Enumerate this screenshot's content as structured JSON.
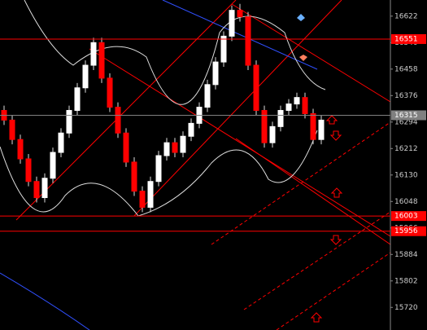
{
  "chart_data": {
    "type": "candlestick",
    "ylim": [
      15650,
      16672
    ],
    "yticks": [
      15720,
      15802,
      15884,
      15966,
      16048,
      16130,
      16212,
      16294,
      16376,
      16458,
      16540,
      16622
    ],
    "up_color": "#ffffff",
    "down_color": "#ff0000",
    "open": [
      16330,
      16300,
      16240,
      16180,
      16110,
      16060,
      16120,
      16200,
      16260,
      16330,
      16400,
      16470,
      16540,
      16430,
      16340,
      16260,
      16170,
      16080,
      16030,
      16110,
      16190,
      16230,
      16200,
      16250,
      16290,
      16340,
      16410,
      16480,
      16560,
      16640,
      16620,
      16470,
      16330,
      16230,
      16280,
      16330,
      16350,
      16370,
      16320,
      16240
    ],
    "high": [
      16345,
      16315,
      16255,
      16195,
      16125,
      16135,
      16215,
      16275,
      16345,
      16415,
      16485,
      16555,
      16555,
      16445,
      16355,
      16275,
      16185,
      16095,
      16125,
      16205,
      16245,
      16245,
      16265,
      16305,
      16355,
      16425,
      16495,
      16575,
      16655,
      16660,
      16635,
      16485,
      16345,
      16295,
      16345,
      16365,
      16385,
      16385,
      16335,
      16315
    ],
    "low": [
      16285,
      16225,
      16165,
      16095,
      16045,
      16045,
      16105,
      16185,
      16245,
      16315,
      16385,
      16455,
      16415,
      16325,
      16245,
      16155,
      16065,
      16015,
      16015,
      16095,
      16175,
      16185,
      16185,
      16235,
      16275,
      16325,
      16395,
      16465,
      16545,
      16605,
      16455,
      16315,
      16215,
      16215,
      16265,
      16315,
      16335,
      16305,
      16225,
      16225
    ],
    "close": [
      16300,
      16240,
      16180,
      16110,
      16060,
      16120,
      16200,
      16260,
      16330,
      16400,
      16470,
      16540,
      16430,
      16340,
      16260,
      16170,
      16080,
      16030,
      16110,
      16190,
      16230,
      16200,
      16250,
      16290,
      16340,
      16410,
      16480,
      16560,
      16640,
      16620,
      16470,
      16330,
      16230,
      16280,
      16330,
      16350,
      16370,
      16320,
      16240,
      16300
    ],
    "levels": [
      {
        "value": 16551,
        "color": "#ff0000"
      },
      {
        "value": 16315,
        "color": "#808080"
      },
      {
        "value": 16003,
        "color": "#ff0000"
      },
      {
        "value": 15956,
        "color": "#ff0000"
      }
    ]
  }
}
